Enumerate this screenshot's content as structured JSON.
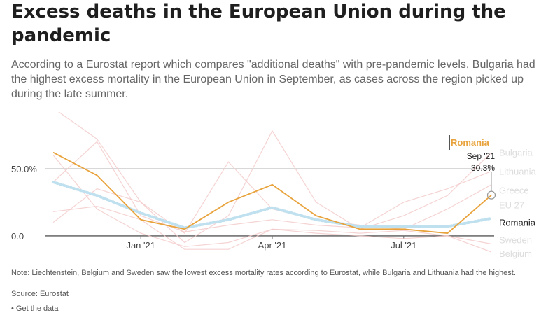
{
  "title": "Excess deaths in the European Union during the pandemic",
  "subtitle": "According to a Eurostat report which compares \"additional deaths\" with pre-pandemic levels, Bulgaria had the highest excess mortality in the European Union in September, as cases across the region picked up during the late summer.",
  "note": "Note: Liechtenstein, Belgium and Sweden saw the lowest excess mortality rates according to Eurostat, while Bulgaria and Lithuania had the highest.",
  "source": "Source: Eurostat",
  "get_data": "• Get the data",
  "colors": {
    "highlight": "#e8a33c",
    "eu_dotted": "#bfe0ee",
    "background_lines": "#f2c8c8",
    "gridline": "#cccccc",
    "zero_line": "#333333",
    "label_faded": "#dddddd"
  },
  "chart_data": {
    "type": "line",
    "x": [
      "2020-11",
      "2020-12",
      "2021-01",
      "2021-02",
      "2021-03",
      "2021-04",
      "2021-05",
      "2021-06",
      "2021-07",
      "2021-08",
      "2021-09"
    ],
    "x_ticks": [
      {
        "label": "Jan '21",
        "x": "2021-01"
      },
      {
        "label": "Apr '21",
        "x": "2021-04"
      },
      {
        "label": "Jul '21",
        "x": "2021-07"
      }
    ],
    "y_ticks": [
      {
        "label": "0.0",
        "value": 0
      },
      {
        "label": "50.0%",
        "value": 50
      }
    ],
    "ylim": [
      -12,
      92
    ],
    "highlight": {
      "name": "Romania",
      "label_date": "Sep '21",
      "label_value": "30.3%",
      "values": [
        62,
        45,
        12,
        5,
        25,
        38,
        15,
        5,
        5,
        2,
        30.3
      ]
    },
    "eu_average": {
      "name": "EU 27",
      "values": [
        40,
        30,
        17,
        6,
        12,
        21,
        12,
        7,
        7,
        7,
        13
      ]
    },
    "background_series": [
      {
        "name": "Bulgaria",
        "values": [
          95,
          72,
          25,
          -5,
          15,
          78,
          25,
          5,
          15,
          30,
          62
        ]
      },
      {
        "name": "Lithuania",
        "values": [
          40,
          70,
          15,
          3,
          8,
          12,
          8,
          6,
          25,
          35,
          48
        ]
      },
      {
        "name": "Greece",
        "values": [
          10,
          35,
          25,
          2,
          55,
          20,
          12,
          8,
          5,
          20,
          38
        ]
      },
      {
        "name": "Sweden",
        "values": [
          18,
          22,
          12,
          -10,
          -10,
          5,
          2,
          0,
          -2,
          0,
          -6
        ]
      },
      {
        "name": "Belgium",
        "values": [
          60,
          20,
          2,
          -8,
          -5,
          5,
          4,
          2,
          4,
          0,
          -12
        ]
      }
    ],
    "end_labels": [
      {
        "text": "Bulgaria",
        "value": 62,
        "faded": true
      },
      {
        "text": "Lithuania",
        "value": 48,
        "faded": true
      },
      {
        "text": "Greece",
        "value": 34,
        "faded": true
      },
      {
        "text": "EU 27",
        "value": 23,
        "faded": true
      },
      {
        "text": "Romania",
        "value": 10,
        "faded": false
      },
      {
        "text": "Sweden",
        "value": -3,
        "faded": true
      },
      {
        "text": "Belgium",
        "value": -13,
        "faded": true
      }
    ]
  }
}
